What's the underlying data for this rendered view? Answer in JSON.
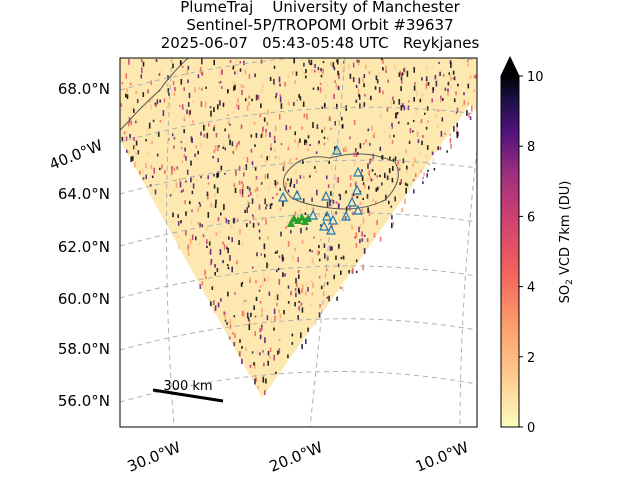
{
  "title_lines": [
    "PlumeTraj    University of Manchester",
    "Sentinel-5P/TROPOMI Orbit #39637",
    "2025-06-07   05:43-05:48 UTC   Reykjanes"
  ],
  "chart_data": {
    "type": "heatmap",
    "title": "PlumeTraj    University of Manchester / Sentinel-5P/TROPOMI Orbit #39637 / 2025-06-07   05:43-05:48 UTC   Reykjanes",
    "projection": "map",
    "lat_ticks": [
      "56.0°N",
      "58.0°N",
      "60.0°N",
      "62.0°N",
      "64.0°N",
      "68.0°N"
    ],
    "lon_ticks": [
      "40.0°W",
      "30.0°W",
      "20.0°W",
      "10.0°W"
    ],
    "colorbar": {
      "label": "SO₂ VCD 7km (DU)",
      "label_main": "SO",
      "label_sub": "2",
      "label_rest": " VCD 7km (DU)",
      "min": 0,
      "max": 10,
      "extend": "max",
      "ticks": [
        "0",
        "2",
        "4",
        "6",
        "8",
        "10"
      ],
      "colormap": "magma_r"
    },
    "scale_bar": "300 km",
    "grid": true,
    "land_color": "#cccccc",
    "volcano_marker_color": "#2ca02c",
    "station_marker_color": "#1f77b4"
  }
}
